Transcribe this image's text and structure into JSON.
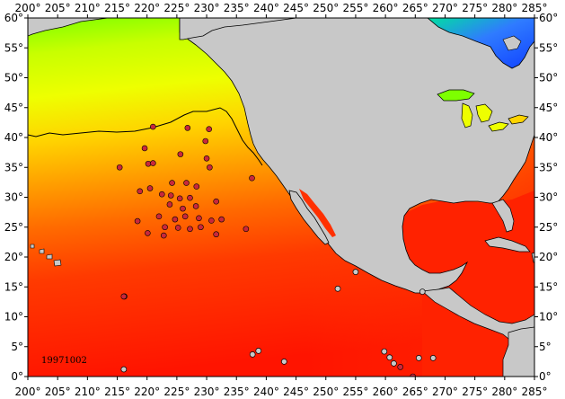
{
  "map": {
    "date_label": "19971002",
    "lon_min": 200,
    "lon_max": 285,
    "lat_min": 0,
    "lat_max": 60,
    "lon_ticks": [
      200,
      205,
      210,
      215,
      220,
      225,
      230,
      235,
      240,
      245,
      250,
      255,
      260,
      265,
      270,
      275,
      280,
      285
    ],
    "lat_ticks": [
      0,
      5,
      10,
      15,
      20,
      25,
      30,
      35,
      40,
      45,
      50,
      55,
      60
    ],
    "degree_symbol": "°",
    "colors": {
      "land": "#c8c8c8",
      "ocean_hot": "#ff1e00",
      "ocean_warm": "#ff7a00",
      "ocean_mid": "#ffd400",
      "ocean_cool": "#e6ff00",
      "ocean_cold": "#7dff00",
      "hudson": "#2f7bff",
      "marker_fill": "#c8283c",
      "contour": "#000000"
    },
    "markers": [
      [
        221.0,
        41.8
      ],
      [
        226.8,
        41.6
      ],
      [
        230.4,
        41.4
      ],
      [
        219.6,
        38.2
      ],
      [
        229.8,
        39.4
      ],
      [
        225.6,
        37.2
      ],
      [
        230.0,
        36.5
      ],
      [
        215.4,
        35.0
      ],
      [
        220.2,
        35.6
      ],
      [
        221.0,
        35.7
      ],
      [
        230.5,
        35.0
      ],
      [
        237.6,
        33.2
      ],
      [
        224.2,
        32.4
      ],
      [
        226.6,
        32.4
      ],
      [
        228.3,
        31.8
      ],
      [
        218.8,
        31.0
      ],
      [
        220.5,
        31.5
      ],
      [
        222.5,
        30.5
      ],
      [
        224.0,
        30.3
      ],
      [
        231.6,
        29.3
      ],
      [
        225.5,
        29.8
      ],
      [
        227.2,
        29.9
      ],
      [
        223.8,
        28.8
      ],
      [
        226.0,
        28.1
      ],
      [
        228.2,
        28.5
      ],
      [
        218.4,
        26.0
      ],
      [
        222.0,
        26.8
      ],
      [
        224.7,
        26.3
      ],
      [
        226.4,
        26.8
      ],
      [
        228.7,
        26.5
      ],
      [
        230.8,
        26.1
      ],
      [
        232.5,
        26.3
      ],
      [
        223.0,
        25.0
      ],
      [
        225.2,
        24.9
      ],
      [
        227.2,
        24.7
      ],
      [
        229.0,
        25.0
      ],
      [
        236.6,
        24.7
      ],
      [
        220.1,
        24.0
      ],
      [
        222.8,
        23.6
      ],
      [
        231.6,
        23.8
      ],
      [
        216.1,
        13.4
      ],
      [
        262.5,
        1.6
      ],
      [
        264.6,
        0.0
      ]
    ],
    "small_islands": [
      [
        216.2,
        13.4
      ],
      [
        216.1,
        1.2
      ],
      [
        237.7,
        3.7
      ],
      [
        238.7,
        4.3
      ],
      [
        243.0,
        2.5
      ],
      [
        259.8,
        4.2
      ],
      [
        260.7,
        3.2
      ],
      [
        261.4,
        2.2
      ],
      [
        265.6,
        3.1
      ],
      [
        268.0,
        3.1
      ],
      [
        266.2,
        14.2
      ],
      [
        252.0,
        14.7
      ],
      [
        255.0,
        17.5
      ]
    ]
  }
}
